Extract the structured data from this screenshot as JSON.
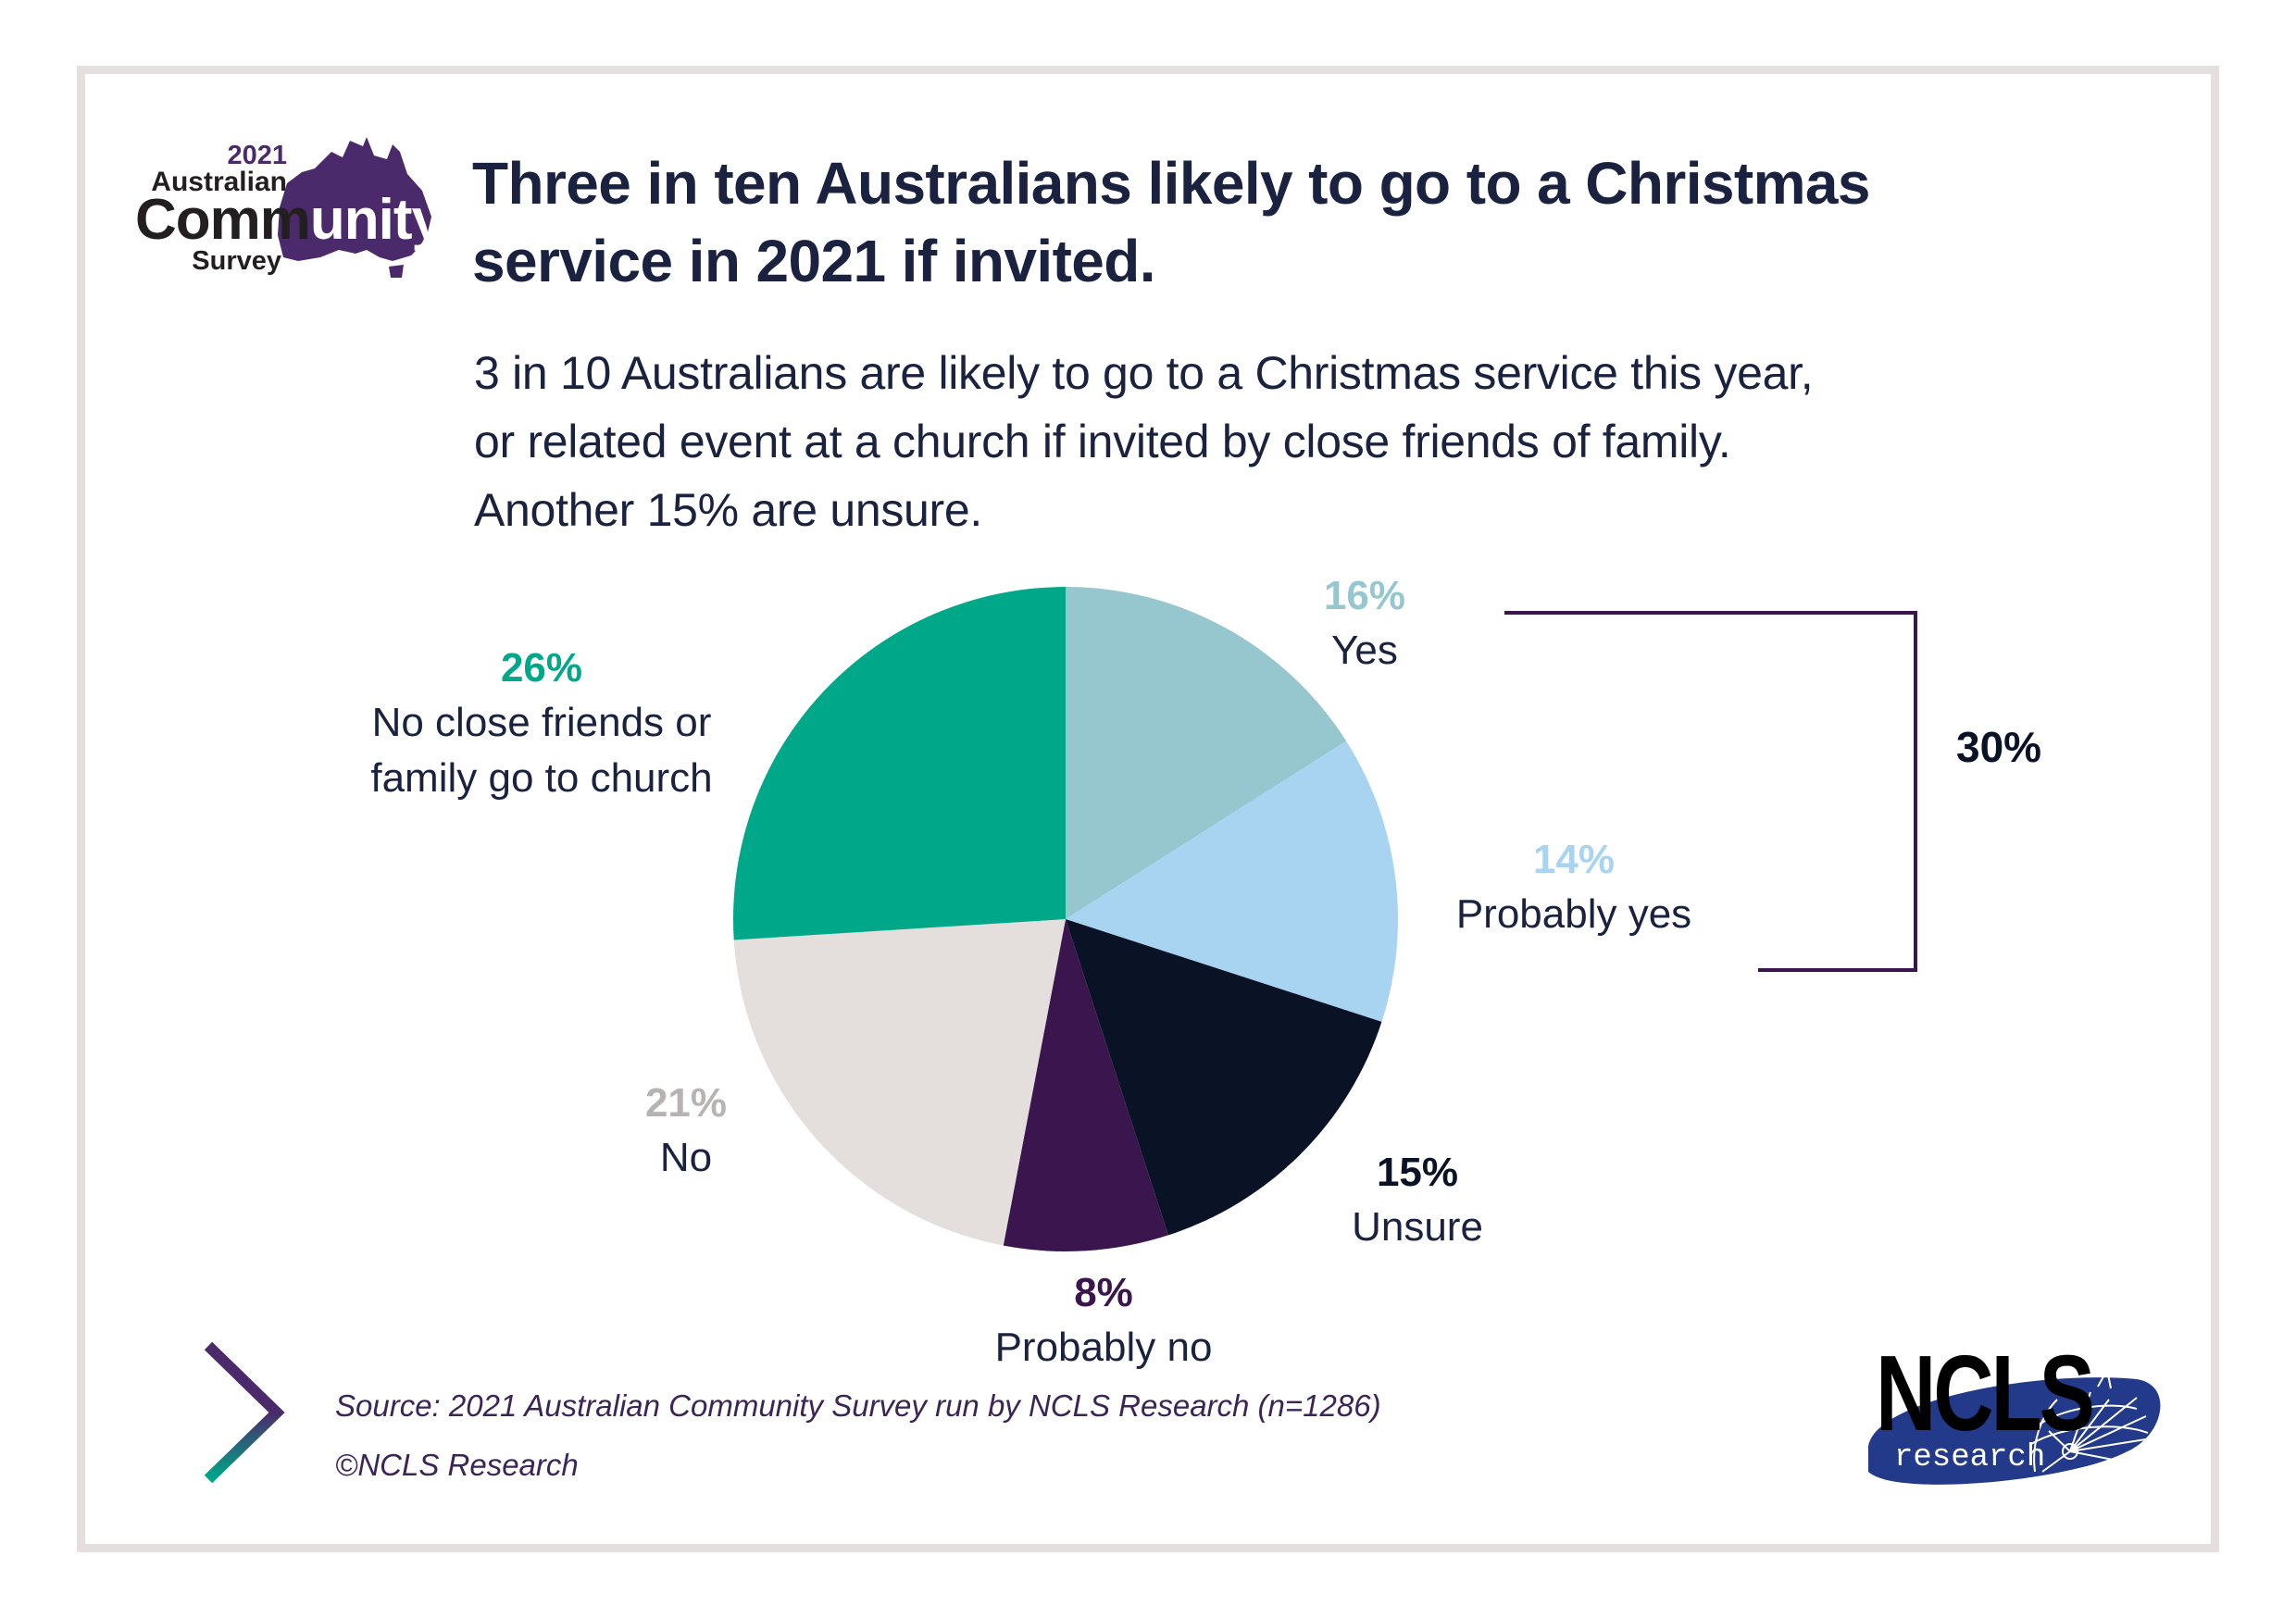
{
  "logo": {
    "year": "2021",
    "line1": "Australian",
    "line2_dark": "Comm",
    "line2_light": "unity",
    "line3": "Survey",
    "map_icon": "australia-map-icon",
    "color": "#4a2a6b"
  },
  "title": "Three in ten Australians likely to go to a Christmas service in 2021 if invited.",
  "title_lines": [
    "Three in ten Australians likely to go to a Christmas",
    "service in 2021 if invited."
  ],
  "subtitle_lines": [
    "3 in 10 Australians are likely to go to a Christmas service this year,",
    "or related event at a church if invited by close friends of family.",
    "Another 15% are unsure."
  ],
  "bracket": {
    "label": "30%",
    "groups": [
      "Yes",
      "Probably yes"
    ],
    "color": "#3b154d"
  },
  "chart_data": {
    "type": "pie",
    "title": "Three in ten Australians likely to go to a Christmas service in 2021 if invited.",
    "start": "12 o'clock",
    "direction": "clockwise",
    "categories": [
      "Yes",
      "Probably yes",
      "Unsure",
      "Probably no",
      "No",
      "No close friends or family go to church"
    ],
    "values": [
      16,
      14,
      15,
      8,
      21,
      26
    ],
    "value_labels": [
      "16%",
      "14%",
      "15%",
      "8%",
      "21%",
      "26%"
    ],
    "label_lines": [
      [
        "Yes"
      ],
      [
        "Probably yes"
      ],
      [
        "Unsure"
      ],
      [
        "Probably no"
      ],
      [
        "No"
      ],
      [
        "No close friends or",
        "family go to church"
      ]
    ],
    "colors": [
      "#97c7ce",
      "#a8d4f2",
      "#0a1226",
      "#3b154d",
      "#e4dedd",
      "#00a88a"
    ],
    "pct_label_colors": [
      "#97c7ce",
      "#a8d4f2",
      "#0a1226",
      "#3b154d",
      "#b8b3b3",
      "#00a88a"
    ],
    "unit": "%",
    "annotations": [
      {
        "text": "30%",
        "spans": [
          "Yes",
          "Probably yes"
        ]
      }
    ]
  },
  "footer": {
    "chevron_icon": "chevron-right-icon",
    "source": "Source:  2021 Australian Community Survey run by NCLS Research (n=1286)",
    "copyright": "©NCLS Research"
  },
  "ncls_logo": {
    "word": "NCLS",
    "sub": "research",
    "color": "#233a8a"
  }
}
